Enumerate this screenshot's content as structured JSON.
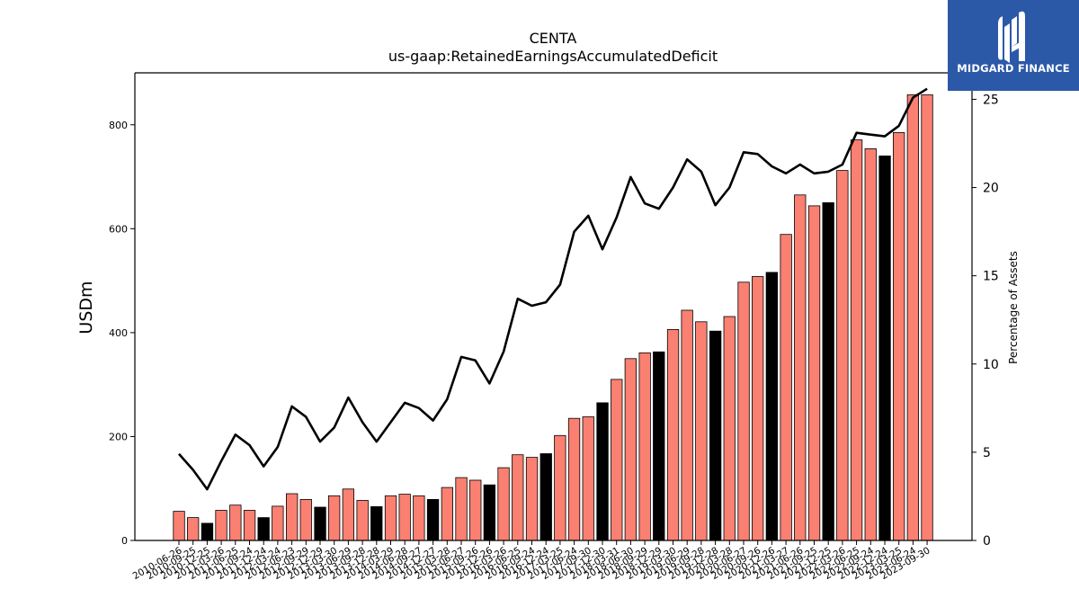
{
  "logo": {
    "text": "MIDGARD FINANCE",
    "background": "#2b59a8",
    "foreground": "#ffffff"
  },
  "chart_data": {
    "type": "bar",
    "title": "CENTA",
    "subtitle": "us-gaap:RetainedEarningsAccumulatedDeficit",
    "ylabel": "USDm",
    "y2label": "Percentage of Assets",
    "ylim": [
      0,
      900
    ],
    "y2lim": [
      0,
      26.5
    ],
    "yticks": [
      0,
      200,
      400,
      600,
      800
    ],
    "y2ticks": [
      0,
      5,
      10,
      15,
      20,
      25
    ],
    "bar_colors": {
      "quarterly": "#fa8072",
      "fiscal_year_end": "#000000"
    },
    "line_color": "#000000",
    "categories": [
      "2010-06-26",
      "2010-09-25",
      "2010-12-25",
      "2011-03-26",
      "2011-06-25",
      "2011-09-24",
      "2011-12-24",
      "2012-03-24",
      "2012-06-23",
      "2012-09-29",
      "2012-12-29",
      "2013-03-30",
      "2013-06-29",
      "2013-09-28",
      "2013-12-28",
      "2014-03-29",
      "2014-06-28",
      "2014-09-27",
      "2014-12-27",
      "2015-03-28",
      "2015-06-27",
      "2015-09-26",
      "2015-12-26",
      "2016-03-26",
      "2016-06-25",
      "2016-09-24",
      "2016-12-24",
      "2017-03-25",
      "2017-06-24",
      "2017-09-30",
      "2017-12-30",
      "2018-03-31",
      "2018-06-30",
      "2018-09-29",
      "2018-12-29",
      "2019-03-30",
      "2019-06-29",
      "2019-09-28",
      "2019-12-28",
      "2020-03-28",
      "2020-06-27",
      "2020-09-26",
      "2020-12-26",
      "2021-03-27",
      "2021-06-26",
      "2021-09-25",
      "2021-12-25",
      "2022-03-26",
      "2022-06-25",
      "2022-09-24",
      "2022-12-24",
      "2023-03-25",
      "2023-06-24",
      "2023-09-30"
    ],
    "values": [
      56,
      44,
      33,
      58,
      68,
      58,
      44,
      66,
      90,
      79,
      64,
      86,
      99,
      77,
      65,
      86,
      89,
      86,
      79,
      102,
      121,
      116,
      107,
      140,
      165,
      160,
      167,
      202,
      235,
      238,
      265,
      310,
      350,
      361,
      363,
      406,
      443,
      421,
      403,
      431,
      497,
      508,
      516,
      589,
      665,
      644,
      650,
      712,
      771,
      754,
      740,
      785,
      858,
      858
    ],
    "fiscal_year_end": [
      false,
      false,
      true,
      false,
      false,
      false,
      true,
      false,
      false,
      false,
      true,
      false,
      false,
      false,
      true,
      false,
      false,
      false,
      true,
      false,
      false,
      false,
      true,
      false,
      false,
      false,
      true,
      false,
      false,
      false,
      true,
      false,
      false,
      false,
      true,
      false,
      false,
      false,
      true,
      false,
      false,
      false,
      true,
      false,
      false,
      false,
      true,
      false,
      false,
      false,
      true,
      false,
      false,
      false
    ],
    "line_series": {
      "name": "Percentage of Assets",
      "values": [
        4.9,
        4.0,
        2.9,
        4.5,
        6.0,
        5.4,
        4.2,
        5.3,
        7.6,
        7.0,
        5.6,
        6.4,
        8.1,
        6.7,
        5.6,
        6.7,
        7.8,
        7.5,
        6.8,
        8.0,
        10.4,
        10.2,
        8.9,
        10.7,
        13.7,
        13.3,
        13.5,
        14.5,
        17.5,
        18.4,
        16.5,
        18.3,
        20.6,
        19.1,
        18.8,
        20.0,
        21.6,
        20.9,
        19.0,
        20.0,
        22.0,
        21.9,
        21.2,
        20.8,
        21.3,
        20.8,
        20.9,
        21.3,
        23.1,
        23.0,
        22.9,
        23.5,
        25.1,
        25.6
      ]
    },
    "grid": false,
    "legend": "none"
  }
}
